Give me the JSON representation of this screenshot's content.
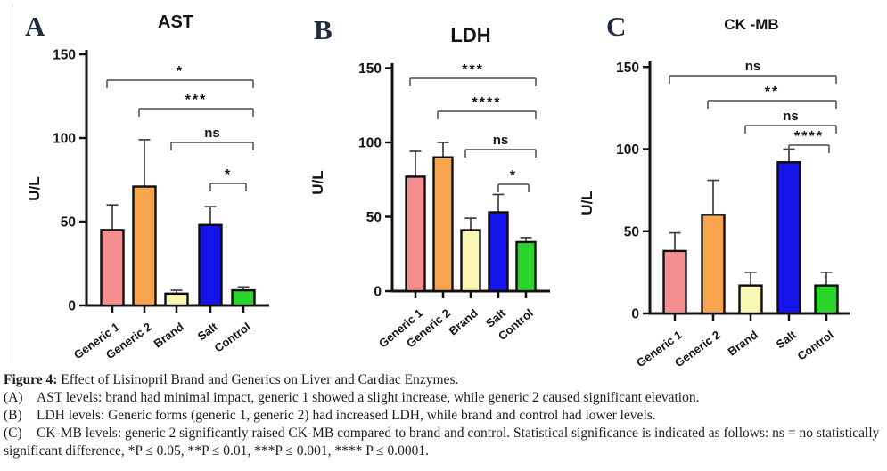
{
  "chart_data": [
    {
      "type": "bar",
      "panel": "A",
      "title": "AST",
      "ylabel": "U/L",
      "categories": [
        "Generic 1",
        "Generic 2",
        "Brand",
        "Salt",
        "Control"
      ],
      "values": [
        45,
        71,
        7,
        48,
        9
      ],
      "errors_upper": [
        15,
        28,
        2,
        11,
        2
      ],
      "ylim": [
        0,
        150
      ],
      "yticks": [
        0,
        50,
        100,
        150
      ],
      "bar_colors": [
        "#F48E90",
        "#F7A44C",
        "#FAF6B3",
        "#1414E8",
        "#2BD42B"
      ],
      "grid": false,
      "significance": [
        {
          "from": "Generic 1",
          "to": "Control",
          "label": "*"
        },
        {
          "from": "Generic 2",
          "to": "Control",
          "label": "***"
        },
        {
          "from": "Brand",
          "to": "Control",
          "label": "ns"
        },
        {
          "from": "Salt",
          "to": "Control",
          "label": "*"
        }
      ]
    },
    {
      "type": "bar",
      "panel": "B",
      "title": "LDH",
      "ylabel": "U/L",
      "categories": [
        "Generic 1",
        "Generic 2",
        "Brand",
        "Salt",
        "Control"
      ],
      "values": [
        77,
        90,
        41,
        53,
        33
      ],
      "errors_upper": [
        17,
        10,
        8,
        12,
        3
      ],
      "ylim": [
        0,
        150
      ],
      "yticks": [
        0,
        50,
        100,
        150
      ],
      "bar_colors": [
        "#F48E90",
        "#F7A44C",
        "#FAF6B3",
        "#1414E8",
        "#2BD42B"
      ],
      "grid": false,
      "significance": [
        {
          "from": "Generic 1",
          "to": "Control",
          "label": "***"
        },
        {
          "from": "Generic 2",
          "to": "Control",
          "label": "****"
        },
        {
          "from": "Brand",
          "to": "Control",
          "label": "ns"
        },
        {
          "from": "Salt",
          "to": "Control",
          "label": "*"
        }
      ]
    },
    {
      "type": "bar",
      "panel": "C",
      "title": "CK -MB",
      "ylabel": "U/L",
      "categories": [
        "Generic 1",
        "Generic 2",
        "Brand",
        "Salt",
        "Control"
      ],
      "values": [
        38,
        60,
        17,
        92,
        17
      ],
      "errors_upper": [
        11,
        21,
        8,
        8,
        8
      ],
      "ylim": [
        0,
        150
      ],
      "yticks": [
        0,
        50,
        100,
        150
      ],
      "bar_colors": [
        "#F48E90",
        "#F7A44C",
        "#FAF6B3",
        "#1414E8",
        "#2BD42B"
      ],
      "grid": false,
      "significance": [
        {
          "from": "Generic 1",
          "to": "Control",
          "label": "ns"
        },
        {
          "from": "Generic 2",
          "to": "Control",
          "label": "**"
        },
        {
          "from": "Brand",
          "to": "Control",
          "label": "ns"
        },
        {
          "from": "Salt",
          "to": "Control",
          "label": "****"
        }
      ]
    }
  ],
  "caption": {
    "figure_label": "Figure 4:",
    "figure_title": " Effect of Lisinopril Brand and Generics on Liver and Cardiac Enzymes.",
    "items": [
      {
        "tag": "(A)",
        "text": "AST levels: brand had minimal impact, generic 1 showed a slight increase, while generic 2 caused significant elevation."
      },
      {
        "tag": "(B)",
        "text": "LDH levels: Generic forms (generic 1, generic 2) had increased LDH, while brand and control had lower levels."
      },
      {
        "tag": "(C)",
        "text": "CK-MB levels: generic 2 significantly raised CK-MB compared to brand and control. Statistical significance is indicated as follows: ns = no statistically significant difference, *P ≤ 0.05, **P ≤ 0.01, ***P ≤ 0.001, **** P ≤ 0.0001."
      }
    ]
  }
}
